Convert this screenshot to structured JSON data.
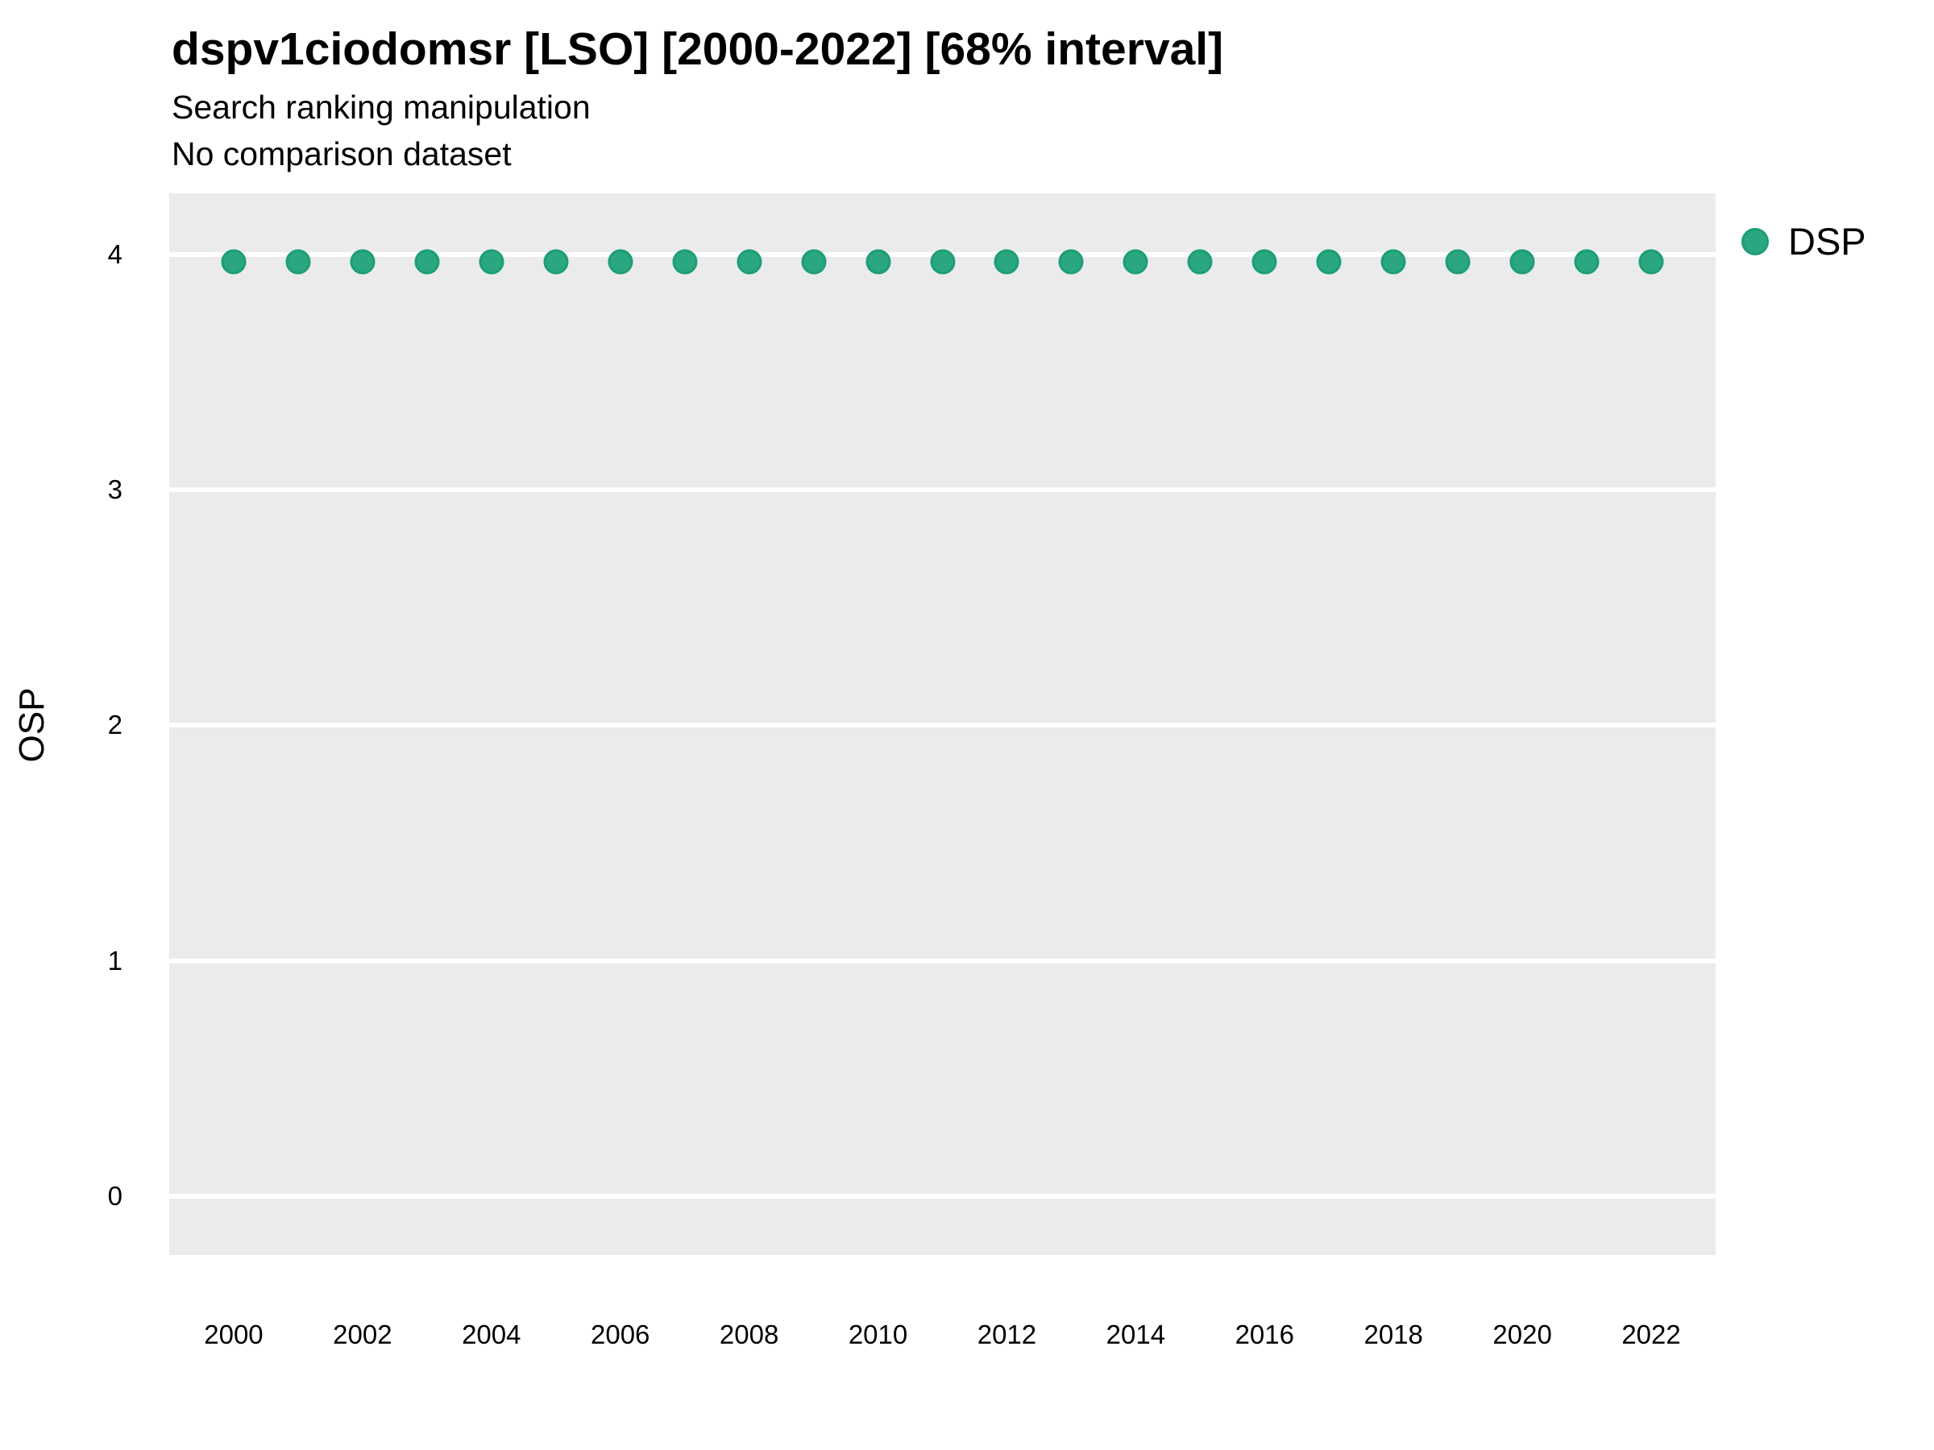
{
  "figure": {
    "title": "dspv1ciodomsr [LSO] [2000-2022] [68% interval]",
    "subtitle": "Search ranking manipulation",
    "note": "No comparison dataset",
    "ylabel": "OSP",
    "legend_label": "DSP"
  },
  "colors": {
    "background": "#FFFFFF",
    "panel_bg": "#EBEBEB",
    "grid": "#FFFFFF",
    "text": "#000000",
    "point_fill": "#2AA780",
    "point_stroke": "#1C9E77"
  },
  "chart_data": {
    "type": "scatter",
    "title": "dspv1ciodomsr [LSO] [2000-2022] [68% interval]",
    "subtitle": "Search ranking manipulation",
    "annotation": "No comparison dataset",
    "xlabel": "",
    "ylabel": "OSP",
    "grid": "horizontal-major-only",
    "panel_background": "#EBEBEB",
    "gridline_color": "#FFFFFF",
    "legend": {
      "position": "right-top-outside",
      "entries": [
        {
          "label": "DSP",
          "color": "#2AA780",
          "marker": "circle"
        }
      ]
    },
    "x_ticks": [
      2000,
      2002,
      2004,
      2006,
      2008,
      2010,
      2012,
      2014,
      2016,
      2018,
      2020,
      2022
    ],
    "y_ticks": [
      0,
      1,
      2,
      3,
      4
    ],
    "xlim": [
      1999,
      2023
    ],
    "ylim": [
      -0.25,
      4.26
    ],
    "series": [
      {
        "name": "DSP",
        "color": "#2AA780",
        "x": [
          2000,
          2001,
          2002,
          2003,
          2004,
          2005,
          2006,
          2007,
          2008,
          2009,
          2010,
          2011,
          2012,
          2013,
          2014,
          2015,
          2016,
          2017,
          2018,
          2019,
          2020,
          2021,
          2022
        ],
        "y": [
          3.97,
          3.97,
          3.97,
          3.97,
          3.97,
          3.97,
          3.97,
          3.97,
          3.97,
          3.97,
          3.97,
          3.97,
          3.97,
          3.97,
          3.97,
          3.97,
          3.97,
          3.97,
          3.97,
          3.97,
          3.97,
          3.97,
          3.97
        ]
      }
    ]
  }
}
